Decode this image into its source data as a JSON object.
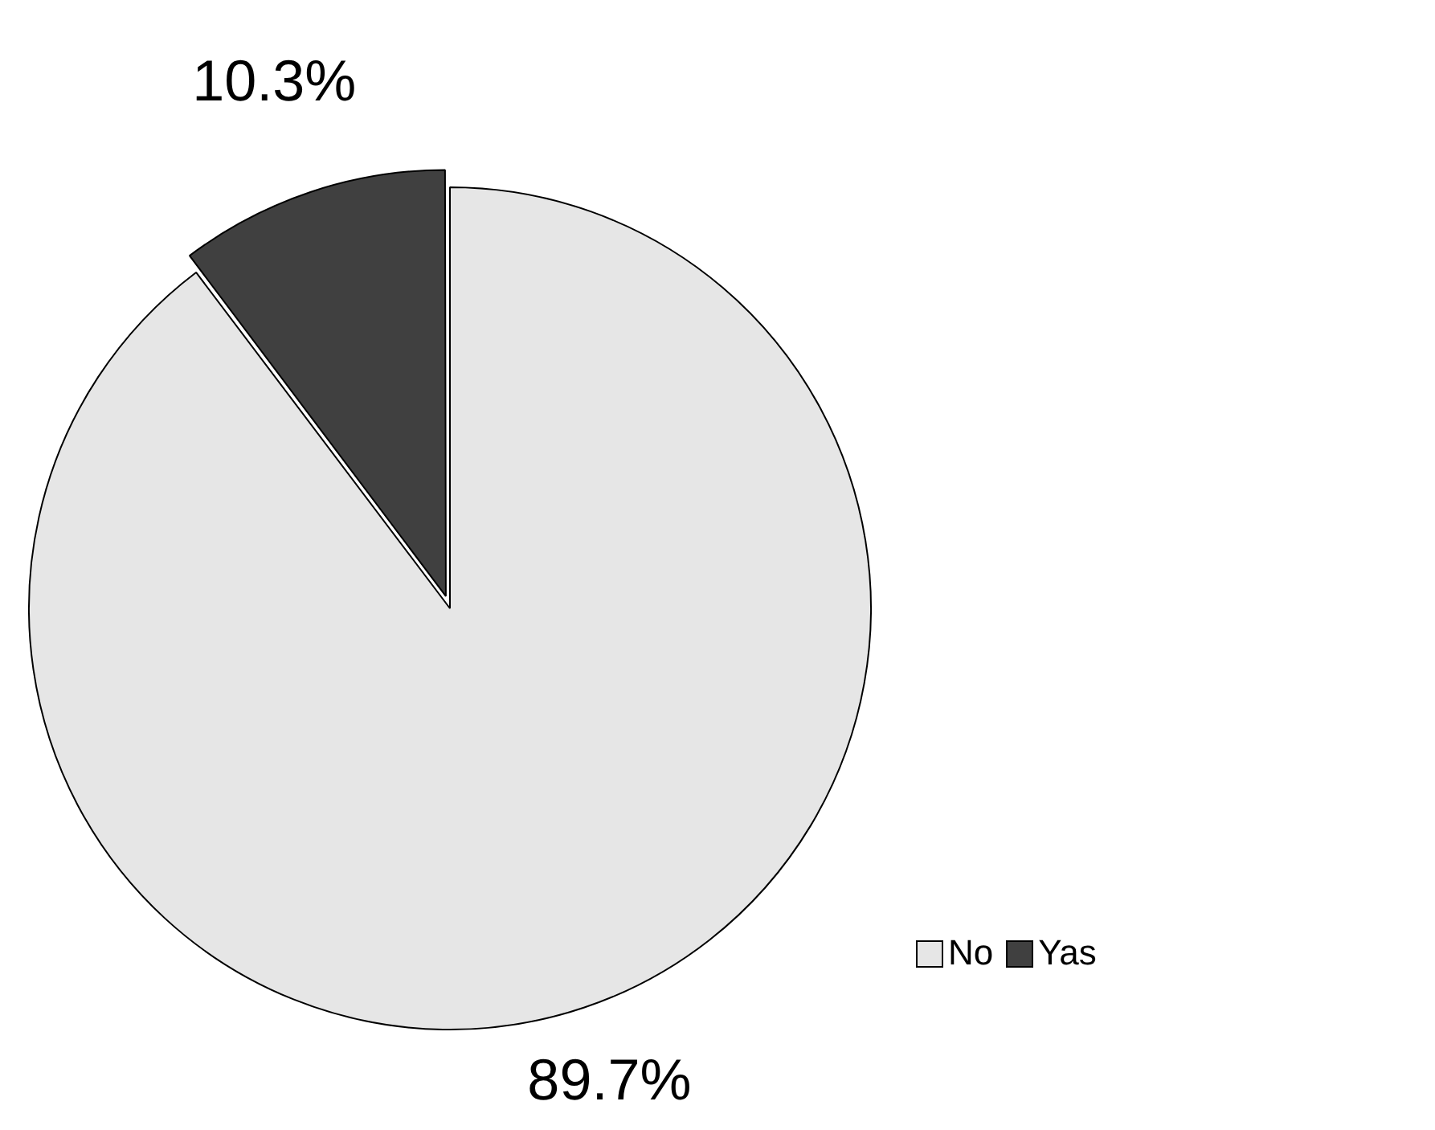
{
  "chart_data": {
    "type": "pie",
    "categories": [
      "No",
      "Yas"
    ],
    "values": [
      89.7,
      10.3
    ],
    "colors": [
      "#e6e6e6",
      "#404040"
    ],
    "value_labels": [
      "89.7%",
      "10.3%"
    ],
    "legend": "bottom right"
  }
}
